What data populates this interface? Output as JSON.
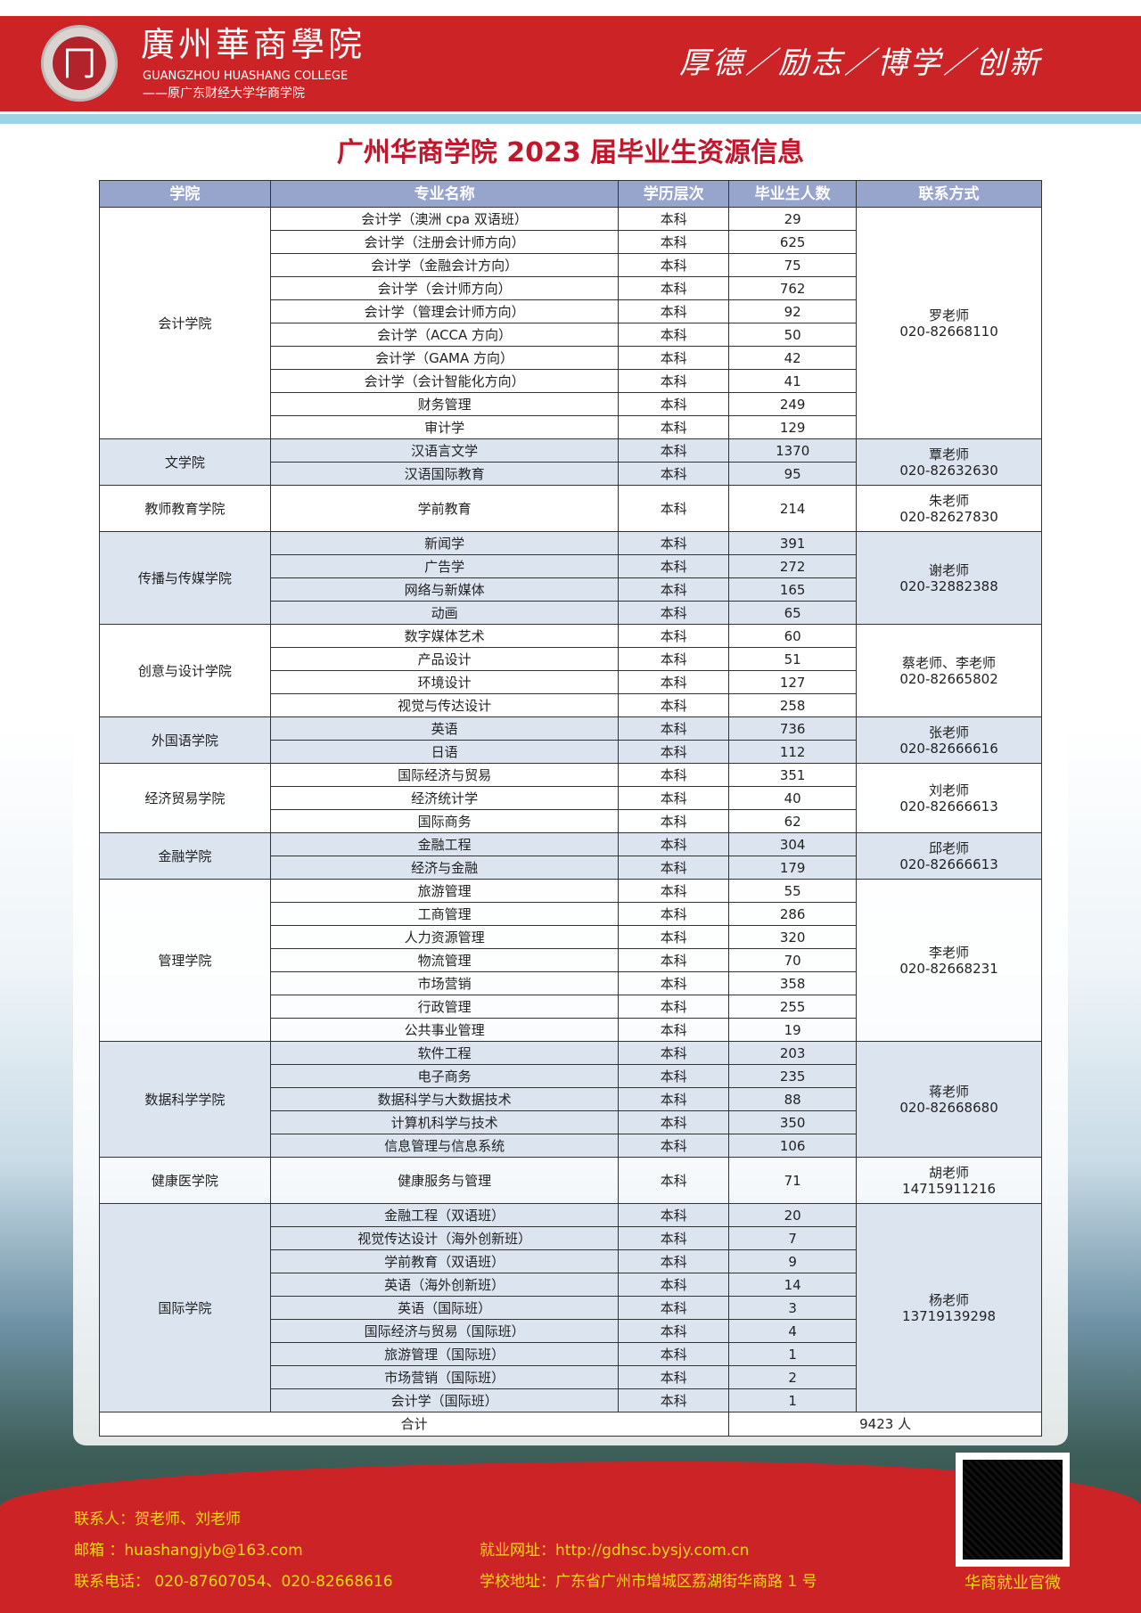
{
  "header": {
    "logo_char": "冂",
    "school_name": "廣州華商學院",
    "english_name": "GUANGZHOU HUASHANG COLLEGE",
    "former_name": "——原广东财经大学华商学院",
    "motto": "厚德／励志／博学／创新"
  },
  "title": "广州华商学院 2023 届毕业生资源信息",
  "table": {
    "headers": [
      "学院",
      "专业名称",
      "学历层次",
      "毕业生人数",
      "联系方式"
    ],
    "groups": [
      {
        "college": "会计学院",
        "contact_name": "罗老师",
        "contact_phone": "020-82668110",
        "majors": [
          [
            "会计学（澳洲 cpa 双语班）",
            "本科",
            "29"
          ],
          [
            "会计学（注册会计师方向）",
            "本科",
            "625"
          ],
          [
            "会计学（金融会计方向）",
            "本科",
            "75"
          ],
          [
            "会计学（会计师方向）",
            "本科",
            "762"
          ],
          [
            "会计学（管理会计师方向）",
            "本科",
            "92"
          ],
          [
            "会计学（ACCA 方向）",
            "本科",
            "50"
          ],
          [
            "会计学（GAMA 方向）",
            "本科",
            "42"
          ],
          [
            "会计学（会计智能化方向）",
            "本科",
            "41"
          ],
          [
            "财务管理",
            "本科",
            "249"
          ],
          [
            "审计学",
            "本科",
            "129"
          ]
        ]
      },
      {
        "college": "文学院",
        "contact_name": "覃老师",
        "contact_phone": "020-82632630",
        "majors": [
          [
            "汉语言文学",
            "本科",
            "1370"
          ],
          [
            "汉语国际教育",
            "本科",
            "95"
          ]
        ]
      },
      {
        "college": "教师教育学院",
        "contact_name": "朱老师",
        "contact_phone": "020-82627830",
        "majors": [
          [
            "学前教育",
            "本科",
            "214"
          ]
        ]
      },
      {
        "college": "传播与传媒学院",
        "contact_name": "谢老师",
        "contact_phone": "020-32882388",
        "majors": [
          [
            "新闻学",
            "本科",
            "391"
          ],
          [
            "广告学",
            "本科",
            "272"
          ],
          [
            "网络与新媒体",
            "本科",
            "165"
          ],
          [
            "动画",
            "本科",
            "65"
          ]
        ]
      },
      {
        "college": "创意与设计学院",
        "contact_name": "蔡老师、李老师",
        "contact_phone": "020-82665802",
        "majors": [
          [
            "数字媒体艺术",
            "本科",
            "60"
          ],
          [
            "产品设计",
            "本科",
            "51"
          ],
          [
            "环境设计",
            "本科",
            "127"
          ],
          [
            "视觉与传达设计",
            "本科",
            "258"
          ]
        ]
      },
      {
        "college": "外国语学院",
        "contact_name": "张老师",
        "contact_phone": "020-82666616",
        "majors": [
          [
            "英语",
            "本科",
            "736"
          ],
          [
            "日语",
            "本科",
            "112"
          ]
        ]
      },
      {
        "college": "经济贸易学院",
        "contact_name": "刘老师",
        "contact_phone": "020-82666613",
        "majors": [
          [
            "国际经济与贸易",
            "本科",
            "351"
          ],
          [
            "经济统计学",
            "本科",
            "40"
          ],
          [
            "国际商务",
            "本科",
            "62"
          ]
        ]
      },
      {
        "college": "金融学院",
        "contact_name": "邱老师",
        "contact_phone": "020-82666613",
        "majors": [
          [
            "金融工程",
            "本科",
            "304"
          ],
          [
            "经济与金融",
            "本科",
            "179"
          ]
        ]
      },
      {
        "college": "管理学院",
        "contact_name": "李老师",
        "contact_phone": "020-82668231",
        "majors": [
          [
            "旅游管理",
            "本科",
            "55"
          ],
          [
            "工商管理",
            "本科",
            "286"
          ],
          [
            "人力资源管理",
            "本科",
            "320"
          ],
          [
            "物流管理",
            "本科",
            "70"
          ],
          [
            "市场营销",
            "本科",
            "358"
          ],
          [
            "行政管理",
            "本科",
            "255"
          ],
          [
            "公共事业管理",
            "本科",
            "19"
          ]
        ]
      },
      {
        "college": "数据科学学院",
        "contact_name": "蒋老师",
        "contact_phone": "020-82668680",
        "majors": [
          [
            "软件工程",
            "本科",
            "203"
          ],
          [
            "电子商务",
            "本科",
            "235"
          ],
          [
            "数据科学与大数据技术",
            "本科",
            "88"
          ],
          [
            "计算机科学与技术",
            "本科",
            "350"
          ],
          [
            "信息管理与信息系统",
            "本科",
            "106"
          ]
        ]
      },
      {
        "college": "健康医学院",
        "contact_name": "胡老师",
        "contact_phone": "14715911216",
        "majors": [
          [
            "健康服务与管理",
            "本科",
            "71"
          ]
        ]
      },
      {
        "college": "国际学院",
        "contact_name": "杨老师",
        "contact_phone": "13719139298",
        "majors": [
          [
            "金融工程（双语班）",
            "本科",
            "20"
          ],
          [
            "视觉传达设计（海外创新班）",
            "本科",
            "7"
          ],
          [
            "学前教育（双语班）",
            "本科",
            "9"
          ],
          [
            "英语（海外创新班）",
            "本科",
            "14"
          ],
          [
            "英语（国际班）",
            "本科",
            "3"
          ],
          [
            "国际经济与贸易（国际班）",
            "本科",
            "4"
          ],
          [
            "旅游管理（国际班）",
            "本科",
            "1"
          ],
          [
            "市场营销（国际班）",
            "本科",
            "2"
          ],
          [
            "会计学（国际班）",
            "本科",
            "1"
          ]
        ]
      }
    ],
    "total_label": "合计",
    "total_value": "9423 人"
  },
  "footer": {
    "contacts": "联系人：贺老师、刘老师",
    "email": "邮箱 ：huashangjyb@163.com",
    "phone": "联系电话： 020-87607054、020-82668616",
    "website": "就业网址：http://gdhsc.bysjy.com.cn",
    "address": "学校地址：广东省广州市增城区荔湖街华商路 1 号",
    "qr_caption": "华商就业官微"
  },
  "colors": {
    "brand_red": "#cc2327",
    "header_blue": "#97a4cc",
    "row_alt": "#dce4f0",
    "footer_text": "#f7d917"
  }
}
